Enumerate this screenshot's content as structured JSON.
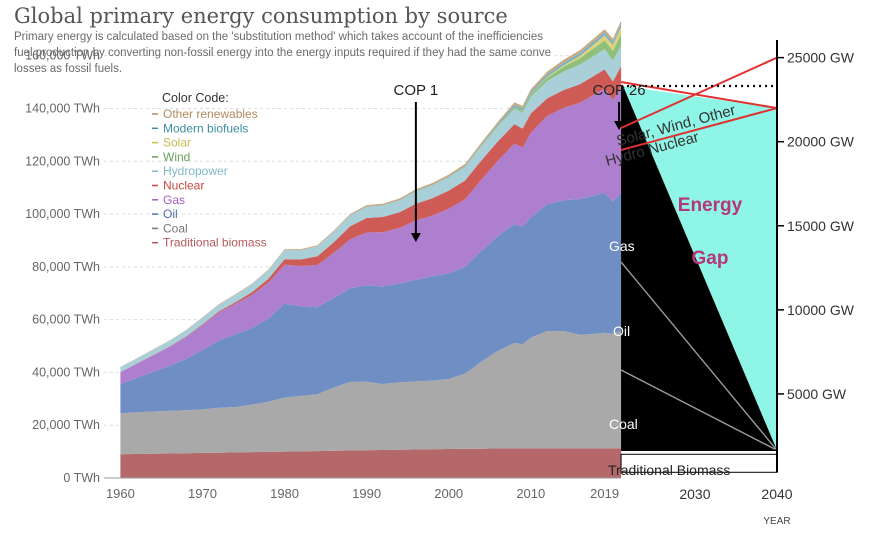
{
  "header": {
    "title": "Global primary energy consumption by source",
    "subtitle_lines": [
      "Primary energy is calculated based on the 'substitution method' which takes account of the inefficiencies",
      "fuel production by converting non-fossil energy into the energy inputs required if they had the same conve",
      "losses as fossil fuels."
    ]
  },
  "legend": {
    "heading": "Color Code:",
    "items": [
      {
        "label": "Other renewables",
        "color": "#b08b5e"
      },
      {
        "label": "Modern biofuels",
        "color": "#3b8ea0"
      },
      {
        "label": "Solar",
        "color": "#c7b84f"
      },
      {
        "label": "Wind",
        "color": "#6aa25a"
      },
      {
        "label": "Hydropower",
        "color": "#7fb8c8"
      },
      {
        "label": "Nuclear",
        "color": "#c94a45"
      },
      {
        "label": "Gas",
        "color": "#a35ec2"
      },
      {
        "label": "Oil",
        "color": "#4e6fb0"
      },
      {
        "label": "Coal",
        "color": "#777777"
      },
      {
        "label": "Traditional biomass",
        "color": "#b5585a"
      }
    ]
  },
  "chart_data": [
    {
      "type": "area",
      "stacked": true,
      "x": [
        1960,
        1962,
        1964,
        1966,
        1968,
        1970,
        1972,
        1974,
        1976,
        1978,
        1980,
        1982,
        1984,
        1986,
        1988,
        1990,
        1992,
        1994,
        1996,
        1998,
        2000,
        2002,
        2004,
        2006,
        2008,
        2009,
        2010,
        2012,
        2014,
        2016,
        2018,
        2019,
        2020,
        2021
      ],
      "series": [
        {
          "name": "Traditional biomass",
          "color": "#b5686a",
          "values": [
            9000,
            9100,
            9200,
            9300,
            9400,
            9500,
            9600,
            9700,
            9800,
            9900,
            10000,
            10100,
            10200,
            10300,
            10400,
            10500,
            10600,
            10700,
            10800,
            10900,
            11000,
            11100,
            11100,
            11200,
            11200,
            11200,
            11200,
            11200,
            11200,
            11200,
            11200,
            11200,
            11200,
            11200
          ]
        },
        {
          "name": "Coal",
          "color": "#a9a9a9",
          "values": [
            15500,
            15800,
            16000,
            16200,
            16300,
            16500,
            17000,
            17200,
            18000,
            19000,
            20500,
            21000,
            21500,
            24000,
            26000,
            26000,
            25000,
            25500,
            25800,
            26000,
            26500,
            28500,
            33000,
            37000,
            40000,
            39500,
            42000,
            44500,
            44500,
            43000,
            43500,
            43800,
            43500,
            44500
          ]
        },
        {
          "name": "Oil",
          "color": "#6f8ec4",
          "values": [
            11000,
            13000,
            15000,
            17000,
            19500,
            22500,
            25500,
            27500,
            29000,
            31500,
            35500,
            34000,
            33000,
            34000,
            35500,
            36500,
            37000,
            37500,
            38500,
            39500,
            40000,
            40500,
            42000,
            43500,
            45000,
            44500,
            45500,
            48000,
            49500,
            51500,
            52500,
            53000,
            50000,
            52500
          ]
        },
        {
          "name": "Gas",
          "color": "#ae7fcf",
          "values": [
            4600,
            5400,
            6300,
            7200,
            8200,
            9400,
            10600,
            11600,
            12500,
            13500,
            14800,
            15200,
            16000,
            17000,
            18500,
            20000,
            20500,
            21000,
            22500,
            23000,
            24500,
            25500,
            27000,
            28500,
            30500,
            30000,
            32000,
            33500,
            35000,
            36500,
            38500,
            39500,
            38500,
            40500
          ]
        },
        {
          "name": "Nuclear",
          "color": "#cf5b57",
          "values": [
            40,
            60,
            100,
            150,
            220,
            300,
            400,
            600,
            1000,
            1500,
            2100,
            2500,
            3300,
            4000,
            5000,
            5500,
            5800,
            6000,
            6300,
            6600,
            6900,
            7100,
            7300,
            7400,
            7300,
            7200,
            7400,
            6600,
            6800,
            7000,
            7200,
            7300,
            7000,
            7300
          ]
        },
        {
          "name": "Hydropower",
          "color": "#a9cfd8",
          "values": [
            1800,
            1900,
            2000,
            2150,
            2300,
            2500,
            2600,
            2800,
            3000,
            3200,
            3400,
            3500,
            3700,
            3900,
            4000,
            4200,
            4300,
            4400,
            4600,
            4800,
            5000,
            5100,
            5300,
            5600,
            5900,
            6000,
            6300,
            6600,
            7000,
            7400,
            7600,
            7700,
            7900,
            7900
          ]
        },
        {
          "name": "Wind",
          "color": "#8ec07c",
          "values": [
            0,
            0,
            0,
            0,
            0,
            0,
            0,
            0,
            0,
            0,
            0,
            0,
            0,
            0,
            0,
            5,
            10,
            20,
            40,
            60,
            100,
            150,
            250,
            400,
            600,
            750,
            900,
            1300,
            1800,
            2400,
            3000,
            3300,
            3700,
            4300
          ]
        },
        {
          "name": "Solar",
          "color": "#dfd27a",
          "values": [
            0,
            0,
            0,
            0,
            0,
            0,
            0,
            0,
            0,
            0,
            0,
            0,
            0,
            0,
            0,
            0,
            0,
            0,
            0,
            0,
            2,
            3,
            5,
            10,
            30,
            50,
            80,
            250,
            500,
            900,
            1500,
            1800,
            2200,
            2600
          ]
        },
        {
          "name": "Modern biofuels",
          "color": "#7fb2bf",
          "values": [
            0,
            0,
            0,
            0,
            0,
            0,
            0,
            0,
            0,
            0,
            50,
            80,
            100,
            120,
            150,
            170,
            180,
            200,
            220,
            240,
            260,
            300,
            400,
            600,
            900,
            950,
            1000,
            1050,
            1100,
            1150,
            1200,
            1250,
            1200,
            1250
          ]
        },
        {
          "name": "Other renewables",
          "color": "#c9a983",
          "values": [
            100,
            110,
            120,
            140,
            160,
            180,
            200,
            220,
            250,
            280,
            300,
            340,
            380,
            420,
            460,
            500,
            540,
            580,
            620,
            660,
            700,
            740,
            780,
            820,
            860,
            880,
            900,
            960,
            1020,
            1080,
            1140,
            1170,
            1200,
            1250
          ]
        }
      ],
      "xlim": [
        1958,
        2040
      ],
      "ylim": [
        0,
        172000
      ],
      "y_ticks": [
        0,
        20000,
        40000,
        60000,
        80000,
        100000,
        120000,
        140000,
        160000
      ],
      "y_tick_labels": [
        "0 TWh",
        "20,000 TWh",
        "40,000 TWh",
        "60,000 TWh",
        "80,000 TWh",
        "100,000 TWh",
        "120,000 TWh",
        "140,000 TWh",
        "160,000 TWh"
      ],
      "x_ticks": [
        1960,
        1970,
        1980,
        1990,
        2000,
        2010,
        2019,
        2030,
        2040
      ],
      "x_tick_labels": [
        "1960",
        "1970",
        "1980",
        "1990",
        "2000",
        "2010",
        "2019",
        "2030",
        "2040"
      ],
      "xlabel": "YEAR",
      "grid": "horizontal-dotted"
    },
    {
      "type": "area",
      "description_role": "projection overlay",
      "right_axis": {
        "ylim": [
          0,
          27000
        ],
        "ticks": [
          5000,
          10000,
          15000,
          20000,
          25000
        ],
        "tick_labels": [
          "5000 GW",
          "10000 GW",
          "15000 GW",
          "20000 GW",
          "25000 GW"
        ]
      },
      "projection": {
        "start_year": 2021,
        "end_year": 2040,
        "fossil_top_start": 148500,
        "biomass_top": 10500,
        "converge_value": 10500,
        "dotted_line_value": 148500,
        "hydro_nuclear_end_gw": 22000,
        "solar_wind_end_gw": 25000
      },
      "annotations": {
        "cop1": {
          "label": "COP 1",
          "year": 1996
        },
        "cop26": {
          "label": "COP 26",
          "year": 2021
        },
        "solar_wind": "Solar, Wind, Other",
        "hydro_nuclear": "Hydro  Nuclear",
        "gas": "Gas",
        "oil": "Oil",
        "coal": "Coal",
        "traditional_biomass": "Traditional Biomass",
        "energy_gap_line1": "Energy",
        "energy_gap_line2": "Gap"
      },
      "colors": {
        "gap_fill": "#8ff5e6",
        "fossil_fill": "#000000",
        "wedge_outline": "#e03030",
        "gap_text": "#b5367a",
        "arrow": "#000000"
      }
    }
  ]
}
